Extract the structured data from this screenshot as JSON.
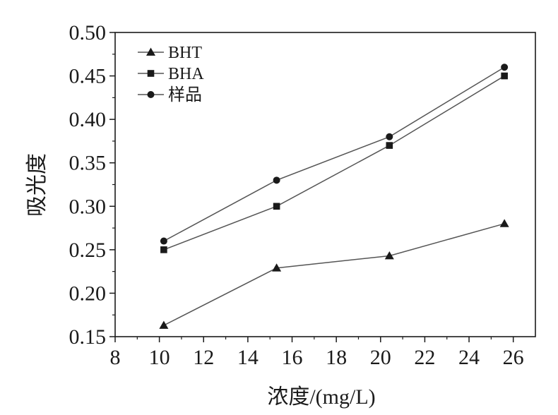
{
  "chart_data": {
    "type": "line",
    "xlabel": "浓度/(mg/L)",
    "ylabel": "吸光度",
    "xlim": [
      8,
      27
    ],
    "ylim": [
      0.15,
      0.5
    ],
    "xticks": [
      "8",
      "10",
      "12",
      "14",
      "16",
      "18",
      "20",
      "22",
      "24",
      "26"
    ],
    "yticks": [
      "0.15",
      "0.20",
      "0.25",
      "0.30",
      "0.35",
      "0.40",
      "0.45",
      "0.50"
    ],
    "grid": false,
    "legend_position": "top-left",
    "series": [
      {
        "name": "BHT",
        "marker": "triangle",
        "x": [
          10.2,
          15.3,
          20.4,
          25.6
        ],
        "y": [
          0.163,
          0.229,
          0.243,
          0.28
        ]
      },
      {
        "name": "BHA",
        "marker": "square",
        "x": [
          10.2,
          15.3,
          20.4,
          25.6
        ],
        "y": [
          0.25,
          0.3,
          0.37,
          0.45
        ]
      },
      {
        "name": "样品",
        "marker": "circle",
        "x": [
          10.2,
          15.3,
          20.4,
          25.6
        ],
        "y": [
          0.26,
          0.33,
          0.38,
          0.46
        ]
      }
    ],
    "colors": {
      "line": "#555555",
      "marker": "#1a1a1a",
      "axis": "#1a1a1a"
    }
  }
}
